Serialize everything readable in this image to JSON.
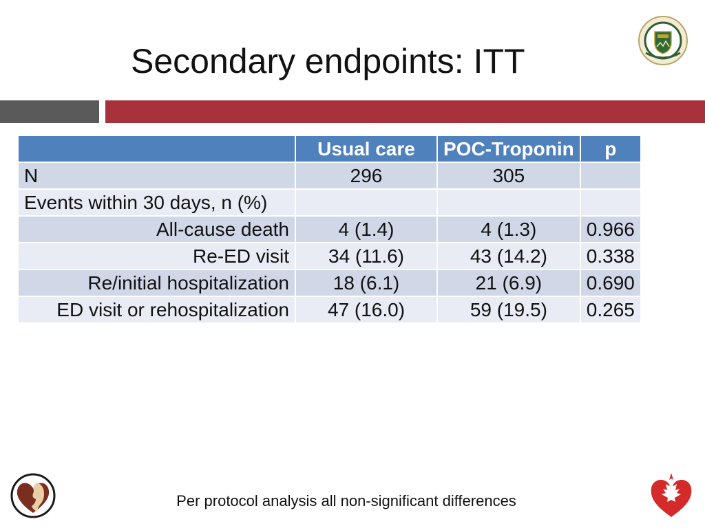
{
  "title": "Secondary endpoints: ITT",
  "table": {
    "headers": [
      "",
      "Usual care",
      "POC-Troponin",
      "p"
    ],
    "rows": [
      {
        "label": "N",
        "usual_care": "296",
        "poc_troponin": "305",
        "p": ""
      },
      {
        "label": "Events within 30 days, n (%)",
        "usual_care": "",
        "poc_troponin": "",
        "p": ""
      },
      {
        "label": "All-cause death",
        "usual_care": "4 (1.4)",
        "poc_troponin": "4 (1.3)",
        "p": "0.966"
      },
      {
        "label": "Re-ED visit",
        "usual_care": "34 (11.6)",
        "poc_troponin": "43 (14.2)",
        "p": "0.338"
      },
      {
        "label": "Re/initial hospitalization",
        "usual_care": "18 (6.1)",
        "poc_troponin": "21 (6.9)",
        "p": "0.690"
      },
      {
        "label": "ED visit or rehospitalization",
        "usual_care": "47 (16.0)",
        "poc_troponin": "59 (19.5)",
        "p": "0.265"
      }
    ]
  },
  "footnote": "Per protocol analysis all non-significant differences",
  "colors": {
    "header_blue": "#4f81bd",
    "row_dark": "#d0d8e8",
    "row_light": "#e9ebf5",
    "accent_red": "#a8323c",
    "accent_gray": "#5a5a5a"
  },
  "icons": {
    "top_right": "university-of-alberta-crest-icon",
    "bottom_left": "heart-profile-logo-icon",
    "bottom_right": "maple-leaf-heart-logo-icon"
  }
}
